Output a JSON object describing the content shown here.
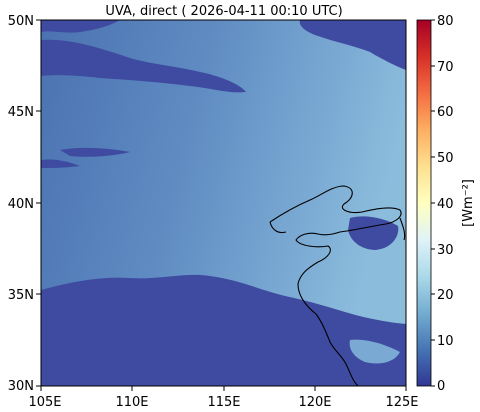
{
  "title": "UVA, direct ( 2026-04-11 00:10 UTC)",
  "map": {
    "lon_ticks": [
      "105E",
      "110E",
      "115E",
      "120E",
      "125E"
    ],
    "lat_ticks": [
      "50N",
      "45N",
      "40N",
      "35N",
      "30N"
    ],
    "extent": {
      "lon": [
        105,
        125
      ],
      "lat": [
        30,
        50
      ]
    }
  },
  "colorbar": {
    "label": "[Wm⁻²]",
    "ticks": [
      "80",
      "70",
      "60",
      "50",
      "40",
      "30",
      "20",
      "10",
      "0"
    ],
    "range": [
      0,
      80
    ],
    "colormap": "RdYlBu_r"
  },
  "colors": {
    "clear_sky_east": "#86b7d9",
    "clear_sky_west": "#4f79b5",
    "cloud": "#3f4ba0",
    "coast": "#000000"
  }
}
